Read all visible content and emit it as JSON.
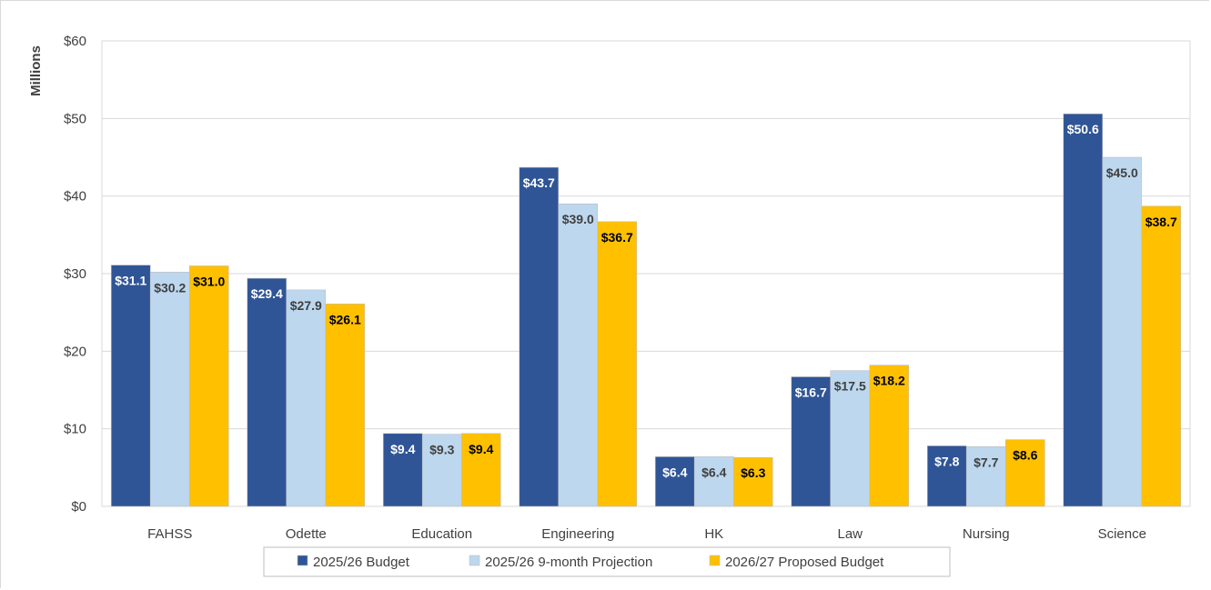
{
  "chart_data": {
    "type": "bar",
    "ylabel": "Millions",
    "xlabel": "",
    "title": "",
    "ylim": [
      0,
      60
    ],
    "yticks": [
      0,
      10,
      20,
      30,
      40,
      50,
      60
    ],
    "ytick_labels": [
      "$0",
      "$10",
      "$20",
      "$30",
      "$40",
      "$50",
      "$60"
    ],
    "grid": "horizontal",
    "legend_position": "bottom",
    "categories": [
      "FAHSS",
      "Odette",
      "Education",
      "Engineering",
      "HK",
      "Law",
      "Nursing",
      "Science"
    ],
    "series": [
      {
        "name": "2025/26 Budget",
        "color": "#2F5597",
        "label_color": "#ffffff",
        "values": [
          31.1,
          29.4,
          9.4,
          43.7,
          6.4,
          16.7,
          7.8,
          50.6
        ],
        "labels": [
          "$31.1",
          "$29.4",
          "$9.4",
          "$43.7",
          "$6.4",
          "$16.7",
          "$7.8",
          "$50.6"
        ]
      },
      {
        "name": "2025/26 9-month Projection",
        "color": "#BDD7EE",
        "label_color": "#404040",
        "values": [
          30.2,
          27.9,
          9.3,
          39.0,
          6.4,
          17.5,
          7.7,
          45.0
        ],
        "labels": [
          "$30.2",
          "$27.9",
          "$9.3",
          "$39.0",
          "$6.4",
          "$17.5",
          "$7.7",
          "$45.0"
        ]
      },
      {
        "name": "2026/27 Proposed Budget",
        "color": "#FFC000",
        "label_color": "#000000",
        "values": [
          31.0,
          26.1,
          9.4,
          36.7,
          6.3,
          18.2,
          8.6,
          38.7
        ],
        "labels": [
          "$31.0",
          "$26.1",
          "$9.4",
          "$36.7",
          "$6.3",
          "$18.2",
          "$8.6",
          "$38.7"
        ]
      }
    ]
  }
}
